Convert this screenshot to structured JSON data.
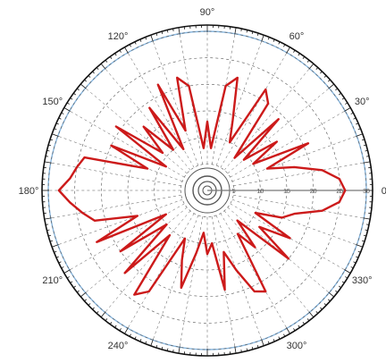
{
  "chart_data": {
    "type": "line",
    "projection": "polar",
    "title": "",
    "angle_unit": "degrees",
    "angle_tick_labels": [
      "0°",
      "30°",
      "60°",
      "90°",
      "120°",
      "150°",
      "180°",
      "210°",
      "240°",
      "270°",
      "300°",
      "330°"
    ],
    "angle_ticks": [
      0,
      30,
      60,
      90,
      120,
      150,
      180,
      210,
      240,
      270,
      300,
      330
    ],
    "radial_tick_labels": [
      "5",
      "10",
      "15",
      "20",
      "25",
      "30"
    ],
    "radial_ticks": [
      5,
      10,
      15,
      20,
      25,
      30
    ],
    "radial_range": [
      0,
      30
    ],
    "grid": true,
    "grid_angle_step": 10,
    "colors": {
      "series": "#cc1a1a",
      "outer_ring": "#111111",
      "reference_circle": "#8ab8e0",
      "grid": "#555555",
      "radial_axis": "#777777"
    },
    "series": [
      {
        "angles": [
          0,
          5,
          10,
          15,
          20,
          25,
          30,
          35,
          40,
          45,
          50,
          55,
          60,
          65,
          70,
          75,
          80,
          85,
          90,
          95,
          100,
          105,
          110,
          115,
          120,
          125,
          130,
          135,
          140,
          145,
          150,
          155,
          160,
          165,
          170,
          175,
          180,
          185,
          190,
          195,
          200,
          205,
          210,
          215,
          220,
          225,
          230,
          235,
          240,
          245,
          250,
          255,
          260,
          265,
          270,
          275,
          280,
          285,
          290,
          295,
          300,
          305,
          310,
          315,
          320,
          325,
          330,
          335,
          340,
          345,
          350,
          355
        ],
        "values": [
          26,
          25,
          22,
          17,
          12,
          21,
          10,
          16,
          9,
          19,
          8,
          20,
          22,
          10,
          14,
          22,
          20,
          8,
          13,
          8,
          20,
          22,
          12,
          22,
          9,
          19,
          10,
          17,
          11,
          21,
          9,
          20,
          12,
          24,
          25,
          26,
          28,
          26,
          24,
          22,
          14,
          23,
          9,
          20,
          10,
          22,
          11,
          24,
          22,
          10,
          14,
          19,
          12,
          8,
          12,
          10,
          19,
          12,
          16,
          21,
          22,
          10,
          14,
          8,
          20,
          12,
          18,
          10,
          15,
          17,
          22,
          25
        ]
      }
    ]
  }
}
